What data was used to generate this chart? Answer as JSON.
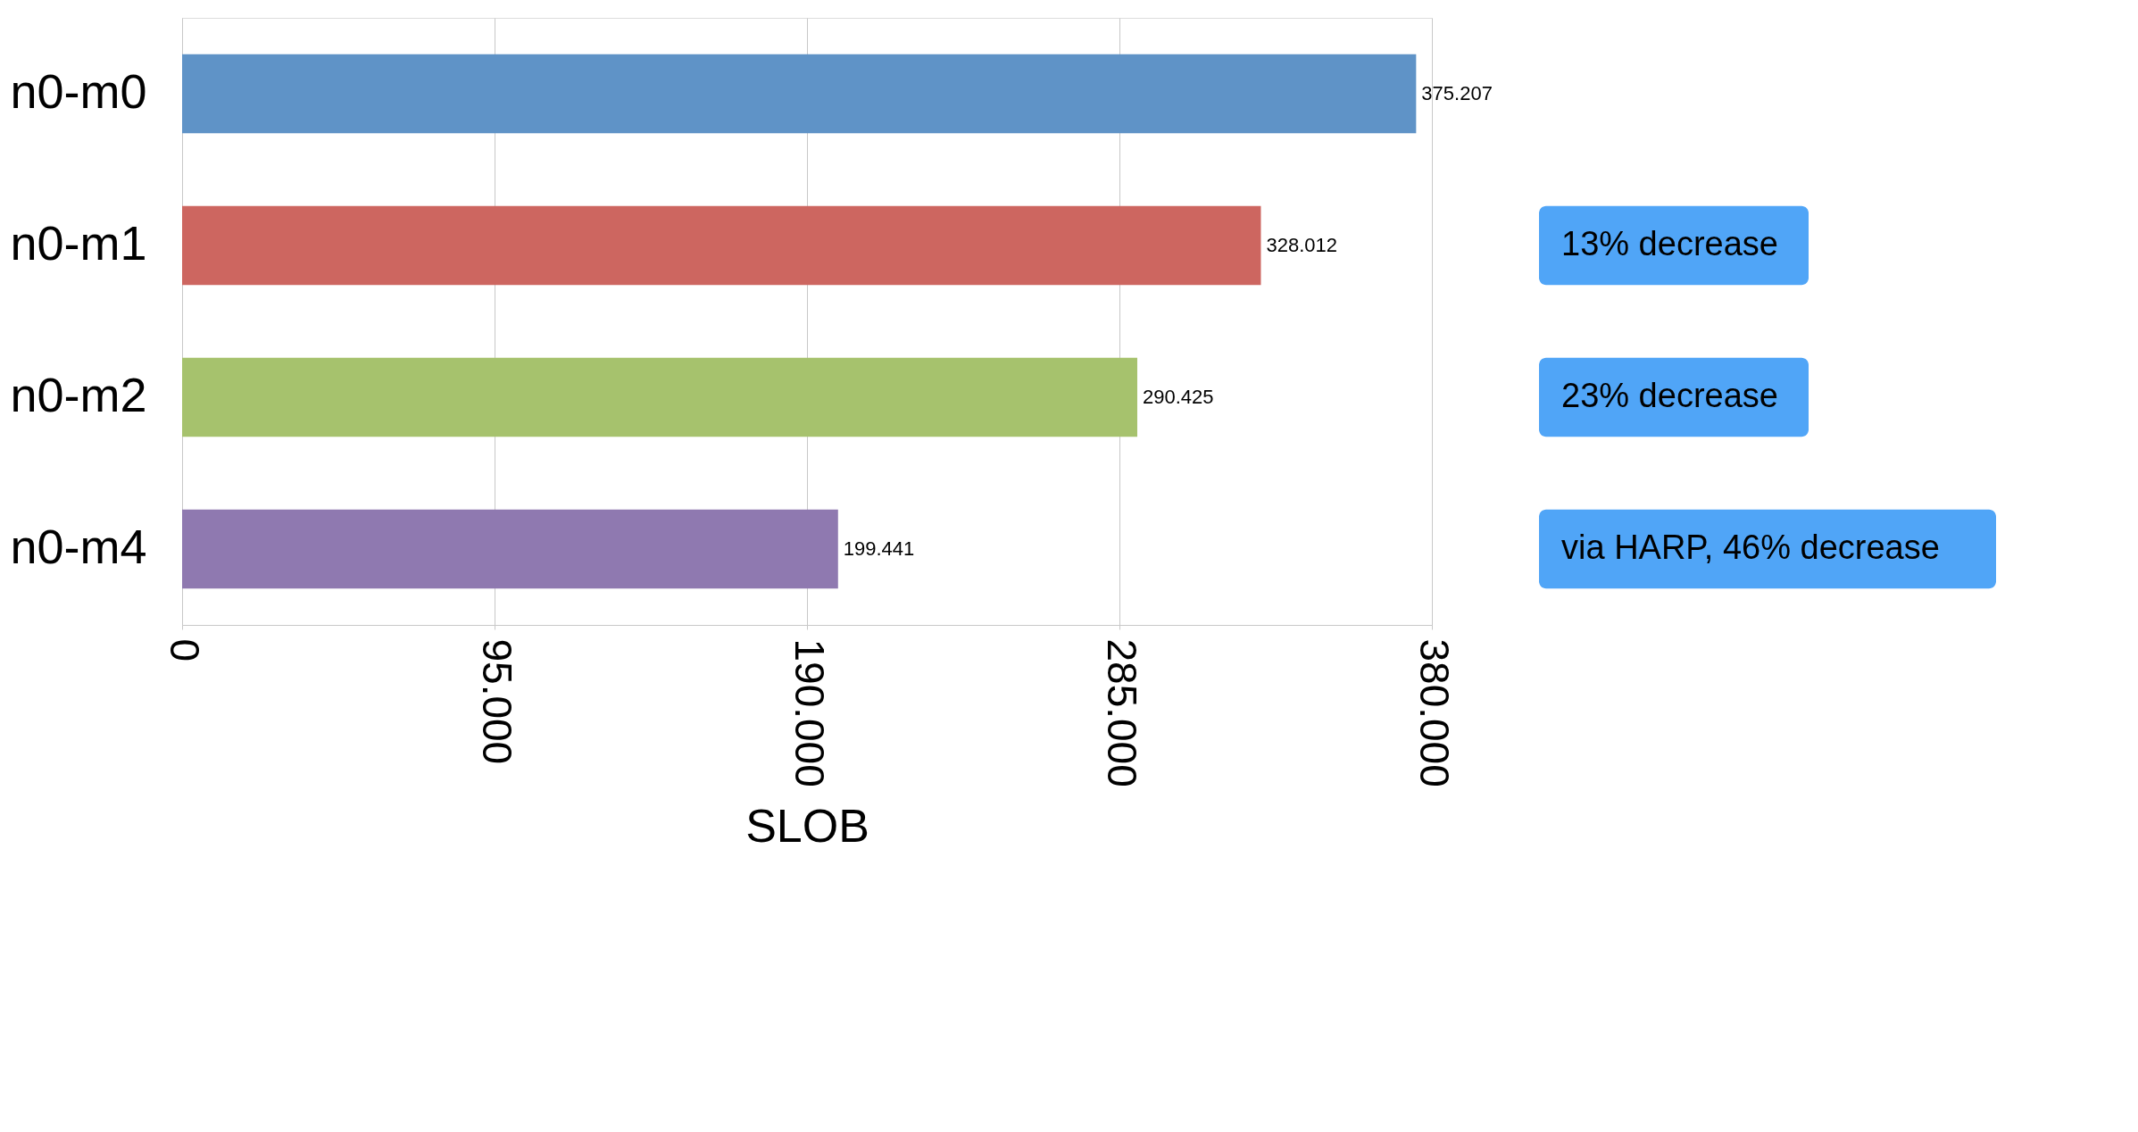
{
  "chart_data": {
    "type": "bar",
    "orientation": "horizontal",
    "xlabel": "SLOB",
    "categories": [
      "n0-m0",
      "n0-m1",
      "n0-m2",
      "n0-m4"
    ],
    "values": [
      375207,
      328012,
      290425,
      199441
    ],
    "value_labels": [
      "375.207",
      "328.012",
      "290.425",
      "199.441"
    ],
    "colors": [
      "#5f93c7",
      "#cd6660",
      "#a6c26d",
      "#8f79b0"
    ],
    "xlim": [
      0,
      380000
    ],
    "xticks": [
      0,
      {
        "value": 95000,
        "label": "95.000"
      },
      {
        "value": 190000,
        "label": "190.000"
      },
      {
        "value": 285000,
        "label": "285.000"
      },
      {
        "value": 380000,
        "label": "380.000"
      }
    ],
    "grid": "x",
    "annotations": [
      "13% decrease",
      "23% decrease",
      "via HARP, 46% decrease"
    ]
  }
}
